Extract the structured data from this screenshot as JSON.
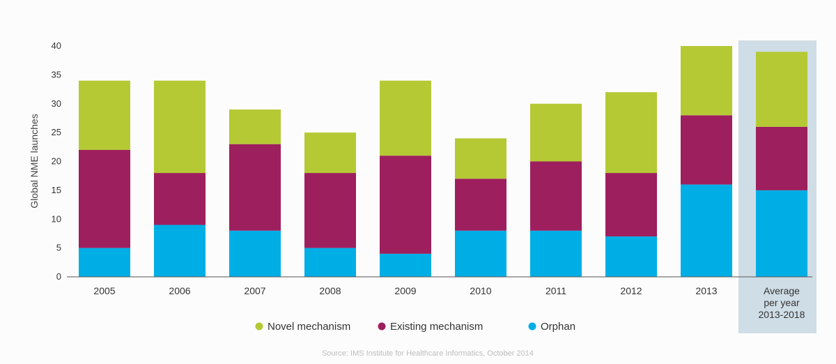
{
  "chart_data": {
    "type": "bar",
    "stacked": true,
    "ylabel": "Global NME launches",
    "ylim": [
      0,
      40
    ],
    "yticks": [
      0,
      5,
      10,
      15,
      20,
      25,
      30,
      35,
      40
    ],
    "grid": false,
    "categories": [
      "2005",
      "2006",
      "2007",
      "2008",
      "2009",
      "2010",
      "2011",
      "2012",
      "2013",
      "Average per year 2013-2018"
    ],
    "category_lines": [
      [
        "2005"
      ],
      [
        "2006"
      ],
      [
        "2007"
      ],
      [
        "2008"
      ],
      [
        "2009"
      ],
      [
        "2010"
      ],
      [
        "2011"
      ],
      [
        "2012"
      ],
      [
        "2013"
      ],
      [
        "Average",
        "per year",
        "2013-2018"
      ]
    ],
    "highlight_category": "Average per year 2013-2018",
    "series": [
      {
        "name": "Orphan",
        "color": "#00aee6",
        "values": [
          5,
          9,
          8,
          5,
          4,
          8,
          8,
          7,
          16,
          15
        ]
      },
      {
        "name": "Existing mechanism",
        "color": "#9e1f5e",
        "values": [
          17,
          9,
          15,
          13,
          17,
          9,
          12,
          11,
          12,
          11
        ]
      },
      {
        "name": "Novel mechanism",
        "color": "#b5c935",
        "values": [
          12,
          16,
          6,
          7,
          13,
          7,
          10,
          14,
          12,
          13
        ]
      }
    ],
    "legend": {
      "placement": "bottom",
      "order": [
        "Novel mechanism",
        "Existing mechanism",
        "Orphan"
      ]
    },
    "source": "Source: IMS Institute for Healthcare Informatics, October 2014",
    "colors": {
      "highlight_bg": "#cfdde6",
      "axis": "#555555"
    }
  }
}
